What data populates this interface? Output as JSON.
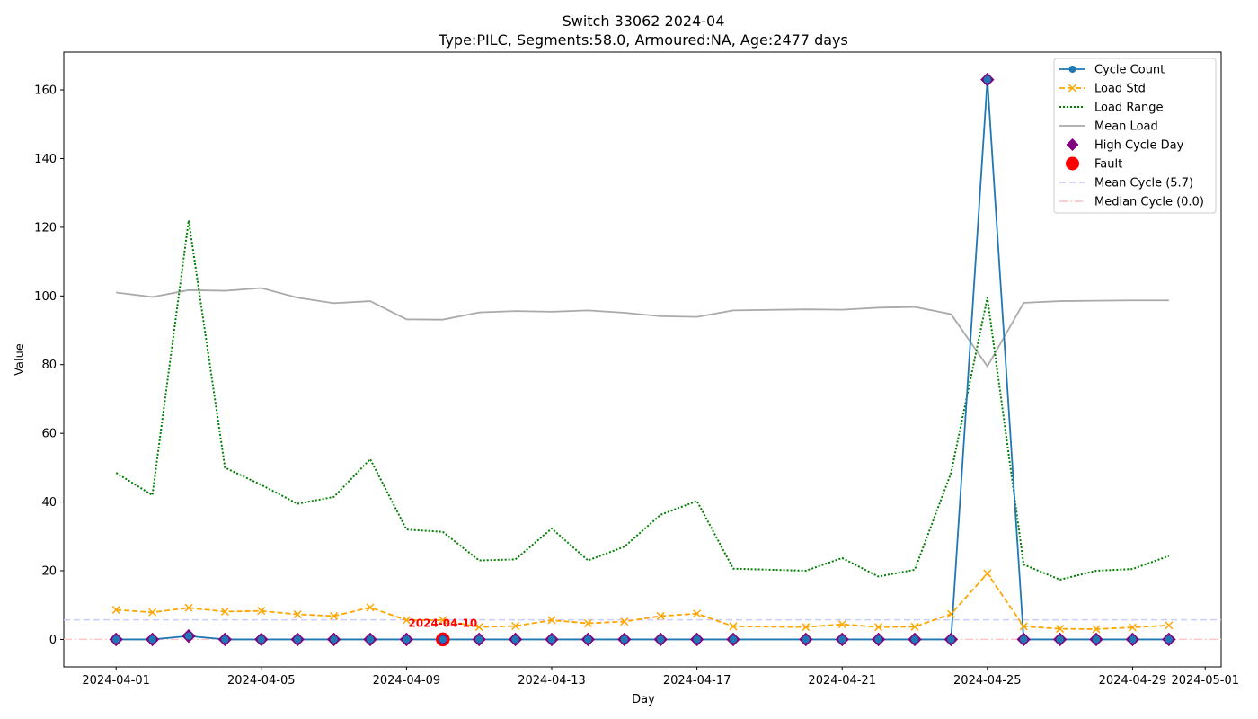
{
  "chart_data": {
    "type": "line",
    "title": "Switch 33062 2024-04",
    "subtitle": "Type:PILC, Segments:58.0, Armoured:NA, Age:2477 days",
    "xlabel": "Day",
    "ylabel": "Value",
    "xlim": [
      "2024-03-30",
      "2024-05-01"
    ],
    "ylim": [
      -8,
      171
    ],
    "x_ticks": [
      "2024-04-01",
      "2024-04-05",
      "2024-04-09",
      "2024-04-13",
      "2024-04-17",
      "2024-04-21",
      "2024-04-25",
      "2024-04-29",
      "2024-05-01"
    ],
    "y_ticks": [
      0,
      20,
      40,
      60,
      80,
      100,
      120,
      140,
      160
    ],
    "grid": false,
    "legend_position": "top-right",
    "x": [
      "2024-04-01",
      "2024-04-02",
      "2024-04-03",
      "2024-04-04",
      "2024-04-05",
      "2024-04-06",
      "2024-04-07",
      "2024-04-08",
      "2024-04-09",
      "2024-04-10",
      "2024-04-11",
      "2024-04-12",
      "2024-04-13",
      "2024-04-14",
      "2024-04-15",
      "2024-04-16",
      "2024-04-17",
      "2024-04-18",
      "2024-04-19",
      "2024-04-20",
      "2024-04-21",
      "2024-04-22",
      "2024-04-23",
      "2024-04-24",
      "2024-04-25",
      "2024-04-26",
      "2024-04-27",
      "2024-04-28",
      "2024-04-29",
      "2024-04-30"
    ],
    "series": [
      {
        "name": "Cycle Count",
        "color": "#1f77b4",
        "style": "solid-marker-circle",
        "x": [
          "2024-04-01",
          "2024-04-02",
          "2024-04-03",
          "2024-04-04",
          "2024-04-05",
          "2024-04-06",
          "2024-04-07",
          "2024-04-08",
          "2024-04-09",
          "2024-04-10",
          "2024-04-11",
          "2024-04-12",
          "2024-04-13",
          "2024-04-14",
          "2024-04-15",
          "2024-04-16",
          "2024-04-17",
          "2024-04-18",
          "2024-04-20",
          "2024-04-21",
          "2024-04-22",
          "2024-04-23",
          "2024-04-24",
          "2024-04-25",
          "2024-04-26",
          "2024-04-27",
          "2024-04-28",
          "2024-04-29",
          "2024-04-30"
        ],
        "values": [
          0,
          0,
          1,
          0,
          0,
          0,
          0,
          0,
          0,
          0,
          0,
          0,
          0,
          0,
          0,
          0,
          0,
          0,
          0,
          0,
          0,
          0,
          0,
          163,
          0,
          0,
          0,
          0,
          0
        ]
      },
      {
        "name": "Load Std",
        "color": "#ffa500",
        "style": "dashed-marker-x",
        "x": [
          "2024-04-01",
          "2024-04-02",
          "2024-04-03",
          "2024-04-04",
          "2024-04-05",
          "2024-04-06",
          "2024-04-07",
          "2024-04-08",
          "2024-04-09",
          "2024-04-10",
          "2024-04-11",
          "2024-04-12",
          "2024-04-13",
          "2024-04-14",
          "2024-04-15",
          "2024-04-16",
          "2024-04-17",
          "2024-04-18",
          "2024-04-20",
          "2024-04-21",
          "2024-04-22",
          "2024-04-23",
          "2024-04-24",
          "2024-04-25",
          "2024-04-26",
          "2024-04-27",
          "2024-04-28",
          "2024-04-29",
          "2024-04-30"
        ],
        "values": [
          8.6,
          7.9,
          9.2,
          8.1,
          8.3,
          7.3,
          6.8,
          9.3,
          5.6,
          5.6,
          3.6,
          3.9,
          5.6,
          4.7,
          5.2,
          6.8,
          7.5,
          3.8,
          3.6,
          4.4,
          3.6,
          3.7,
          7.4,
          19.2,
          3.8,
          3.1,
          3.0,
          3.5,
          4.1
        ]
      },
      {
        "name": "Load Range",
        "color": "#008000",
        "style": "dotted",
        "x": [
          "2024-04-01",
          "2024-04-02",
          "2024-04-03",
          "2024-04-04",
          "2024-04-05",
          "2024-04-06",
          "2024-04-07",
          "2024-04-08",
          "2024-04-09",
          "2024-04-10",
          "2024-04-11",
          "2024-04-12",
          "2024-04-13",
          "2024-04-14",
          "2024-04-15",
          "2024-04-16",
          "2024-04-17",
          "2024-04-18",
          "2024-04-20",
          "2024-04-21",
          "2024-04-22",
          "2024-04-23",
          "2024-04-24",
          "2024-04-25",
          "2024-04-26",
          "2024-04-27",
          "2024-04-28",
          "2024-04-29",
          "2024-04-30"
        ],
        "values": [
          48.5,
          42,
          122,
          50,
          45,
          39.5,
          41.5,
          52.5,
          32,
          31.3,
          23,
          23.3,
          32.3,
          23,
          27,
          36.3,
          40.3,
          20.6,
          20,
          23.7,
          18.3,
          20.3,
          48.5,
          99.5,
          21.8,
          17.4,
          20,
          20.5,
          24.3
        ]
      },
      {
        "name": "Mean Load",
        "color": "#aaaaaa",
        "style": "solid",
        "x": [
          "2024-04-01",
          "2024-04-02",
          "2024-04-03",
          "2024-04-04",
          "2024-04-05",
          "2024-04-06",
          "2024-04-07",
          "2024-04-08",
          "2024-04-09",
          "2024-04-10",
          "2024-04-11",
          "2024-04-12",
          "2024-04-13",
          "2024-04-14",
          "2024-04-15",
          "2024-04-16",
          "2024-04-17",
          "2024-04-18",
          "2024-04-20",
          "2024-04-21",
          "2024-04-22",
          "2024-04-23",
          "2024-04-24",
          "2024-04-25",
          "2024-04-26",
          "2024-04-27",
          "2024-04-28",
          "2024-04-29",
          "2024-04-30"
        ],
        "values": [
          101,
          99.7,
          101.7,
          101.5,
          102.3,
          99.5,
          97.9,
          98.5,
          93.2,
          93.1,
          95.2,
          95.6,
          95.4,
          95.8,
          95.1,
          94.1,
          93.9,
          95.8,
          96.1,
          96.0,
          96.6,
          96.8,
          94.7,
          79.5,
          98.0,
          98.5,
          98.6,
          98.7,
          98.7
        ]
      }
    ],
    "markers": [
      {
        "name": "High Cycle Day",
        "color": "#800080",
        "shape": "diamond",
        "x": [
          "2024-04-01",
          "2024-04-02",
          "2024-04-03",
          "2024-04-04",
          "2024-04-05",
          "2024-04-06",
          "2024-04-07",
          "2024-04-08",
          "2024-04-09",
          "2024-04-10",
          "2024-04-11",
          "2024-04-12",
          "2024-04-13",
          "2024-04-14",
          "2024-04-15",
          "2024-04-16",
          "2024-04-17",
          "2024-04-18",
          "2024-04-20",
          "2024-04-21",
          "2024-04-22",
          "2024-04-23",
          "2024-04-24",
          "2024-04-25",
          "2024-04-26",
          "2024-04-27",
          "2024-04-28",
          "2024-04-29",
          "2024-04-30"
        ],
        "values": [
          0,
          0,
          1,
          0,
          0,
          0,
          0,
          0,
          0,
          0,
          0,
          0,
          0,
          0,
          0,
          0,
          0,
          0,
          0,
          0,
          0,
          0,
          0,
          163,
          0,
          0,
          0,
          0,
          0
        ]
      },
      {
        "name": "Fault",
        "color": "#ff0000",
        "shape": "circle",
        "x": [
          "2024-04-10"
        ],
        "values": [
          0
        ]
      }
    ],
    "reference_lines": [
      {
        "name": "Mean Cycle (5.7)",
        "value": 5.7,
        "color": "#ccccff",
        "style": "dashed"
      },
      {
        "name": "Median Cycle (0.0)",
        "value": 0.0,
        "color": "#ffc8c8",
        "style": "dashdot"
      }
    ],
    "annotations": [
      {
        "text": "2024-04-10",
        "x": "2024-04-10",
        "y": 0,
        "color": "#ff0000"
      }
    ]
  }
}
